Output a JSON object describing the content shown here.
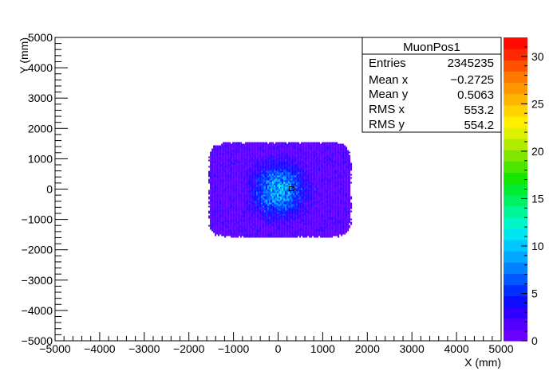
{
  "chart_data": {
    "type": "heatmap",
    "title": "",
    "xlabel": "X (mm)",
    "ylabel": "Y (mm)",
    "xlim": [
      -5000,
      5000
    ],
    "ylim": [
      -5000,
      5000
    ],
    "x_ticks": [
      -5000,
      -4000,
      -3000,
      -2000,
      -1000,
      0,
      1000,
      2000,
      3000,
      4000,
      5000
    ],
    "y_ticks": [
      -5000,
      -4000,
      -3000,
      -2000,
      -1000,
      0,
      1000,
      2000,
      3000,
      4000,
      5000
    ],
    "populated_region": {
      "x": [
        -1600,
        1650
      ],
      "y": [
        -1600,
        1600
      ]
    },
    "peak_center": {
      "x": 0,
      "y": 0
    },
    "colorbar": {
      "min": 0,
      "max": 32,
      "ticks": [
        0,
        5,
        10,
        15,
        20,
        25,
        30
      ],
      "palette": [
        "#6a00ff",
        "#5300ff",
        "#3000ff",
        "#0c0cff",
        "#0030ff",
        "#0058ff",
        "#0082ff",
        "#00a8ff",
        "#00c8ff",
        "#00e6f0",
        "#00f5c8",
        "#00f596",
        "#00f064",
        "#00eb32",
        "#14e600",
        "#4be600",
        "#7ee600",
        "#b0eb00",
        "#dcf000",
        "#fff000",
        "#ffd200",
        "#ffb400",
        "#ff9600",
        "#ff7800",
        "#ff5000",
        "#ff2800",
        "#ff0a00"
      ]
    },
    "stats_box": {
      "title": "MuonPos1",
      "rows": [
        {
          "label": "Entries",
          "value": "2345235"
        },
        {
          "label": "Mean x",
          "value": "−0.2725"
        },
        {
          "label": "Mean y",
          "value": "0.5063"
        },
        {
          "label": "RMS x",
          "value": "553.2"
        },
        {
          "label": "RMS y",
          "value": "554.2"
        }
      ]
    }
  }
}
